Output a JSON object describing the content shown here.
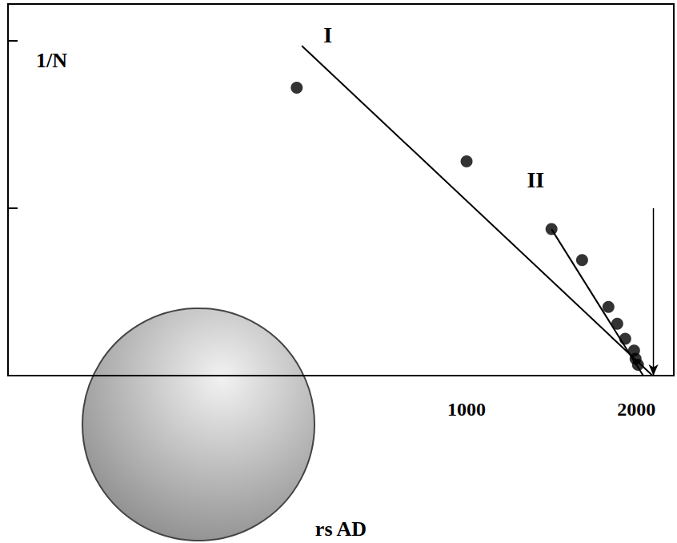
{
  "chart_data": {
    "type": "scatter",
    "x_label": "rs AD",
    "y_label": "1/N",
    "xlim": [
      -1700,
      2220
    ],
    "xticks": [
      1000,
      2000
    ],
    "ylim": [
      0,
      2.22
    ],
    "yticks": [
      1,
      2
    ],
    "tick_labels": "x",
    "grid": false,
    "series": [
      {
        "type": "scatter",
        "color": "#000000",
        "marker": "circle",
        "x": [
          0,
          1000,
          1500,
          1680,
          1835,
          1887,
          1934,
          1986,
          1995,
          2009
        ],
        "values": [
          1.72,
          1.28,
          0.875,
          0.69,
          0.41,
          0.31,
          0.22,
          0.15,
          0.1,
          0.065
        ]
      },
      {
        "name": "I",
        "type": "line",
        "color": "#000000",
        "line_style": "solid",
        "x": [
          30,
          2095
        ],
        "values": [
          1.97,
          0
        ]
      },
      {
        "name": "II",
        "type": "line",
        "color": "#000000",
        "line_style": "solid",
        "x": [
          1500,
          2040
        ],
        "values": [
          0.875,
          0
        ]
      }
    ],
    "arrow": {
      "x": 2100,
      "y": [
        1,
        0
      ]
    }
  }
}
